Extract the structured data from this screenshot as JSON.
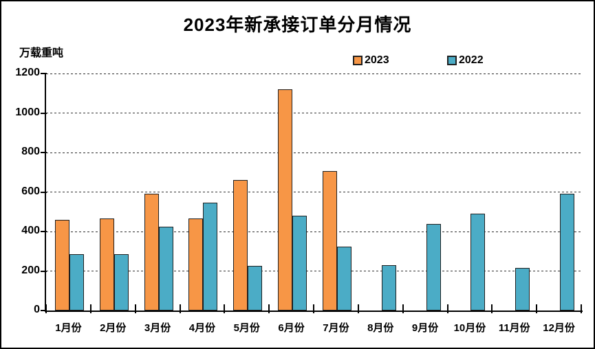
{
  "title": "2023年新承接订单分月情况",
  "unit_label": "万载重吨",
  "legend": [
    {
      "label": "2023",
      "color": "#F79646"
    },
    {
      "label": "2022",
      "color": "#4BACC6"
    }
  ],
  "colors": {
    "bar_2023": "#F79646",
    "bar_2022": "#4BACC6",
    "bar_border": "#1f1f1f",
    "axis": "#000000",
    "gridline": "#2e2e2e",
    "background": "#ffffff"
  },
  "chart_data": {
    "type": "bar",
    "title": "2023年新承接订单分月情况",
    "ylabel": "万载重吨",
    "xlabel": "",
    "categories": [
      "1月份",
      "2月份",
      "3月份",
      "4月份",
      "5月份",
      "6月份",
      "7月份",
      "8月份",
      "9月份",
      "10月份",
      "11月份",
      "12月份"
    ],
    "series": [
      {
        "name": "2023",
        "color": "#F79646",
        "values": [
          460,
          465,
          590,
          465,
          660,
          1120,
          705,
          null,
          null,
          null,
          null,
          null
        ]
      },
      {
        "name": "2022",
        "color": "#4BACC6",
        "values": [
          285,
          285,
          425,
          545,
          225,
          480,
          325,
          230,
          440,
          490,
          215,
          590
        ]
      }
    ],
    "ylim": [
      0,
      1200
    ],
    "yticks": [
      0,
      200,
      400,
      600,
      800,
      1000,
      1200
    ],
    "grid": "horizontal-dashed",
    "legend_position": "top-center"
  }
}
